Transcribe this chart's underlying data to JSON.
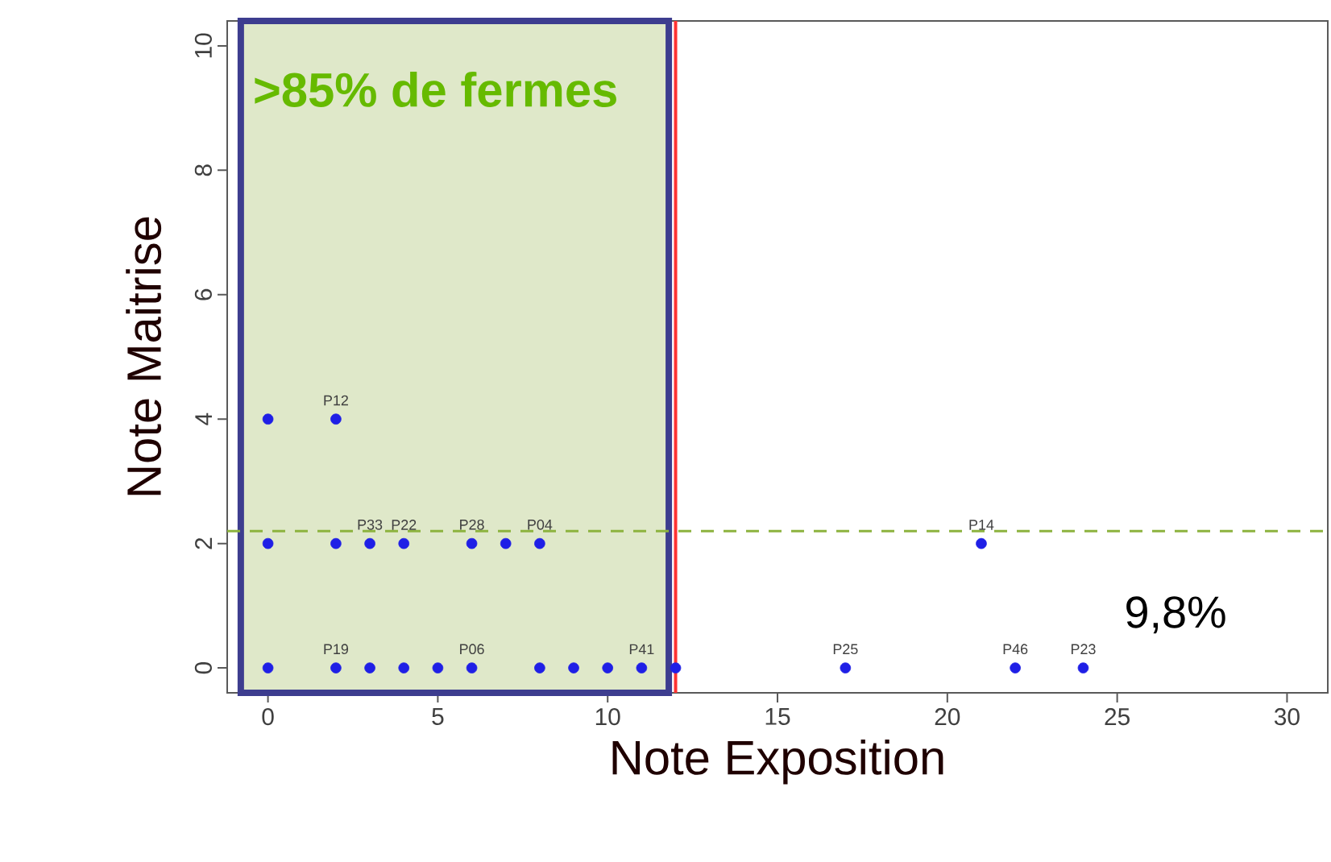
{
  "chart_data": {
    "type": "scatter",
    "xlabel": "Note Exposition",
    "ylabel": "Note Maitrise",
    "x": [
      0,
      2,
      0,
      2,
      3,
      4,
      6,
      7,
      8,
      21,
      0,
      2,
      3,
      4,
      5,
      6,
      8,
      9,
      10,
      11,
      12,
      17,
      22,
      24
    ],
    "values": [
      4,
      4,
      2,
      2,
      2,
      2,
      2,
      2,
      2,
      2,
      0,
      0,
      0,
      0,
      0,
      0,
      0,
      0,
      0,
      0,
      0,
      0,
      0,
      0
    ],
    "color": "#1f1fe6",
    "marker": "circle",
    "xlim": [
      -1.2,
      31.2
    ],
    "ylim": [
      -0.4,
      10.4
    ],
    "xticks": [
      0,
      5,
      10,
      15,
      20,
      25,
      30
    ],
    "yticks": [
      0,
      2,
      4,
      6,
      8,
      10
    ],
    "grid": false,
    "ref_lines": [
      {
        "axis": "x",
        "value": 12,
        "color": "#ff3333",
        "line_style": "solid"
      },
      {
        "axis": "y",
        "value": 2.2,
        "color": "#8db33f",
        "line_style": "dashed"
      }
    ],
    "bands": [
      {
        "axis": "x",
        "from": -0.8,
        "to": 11.8,
        "label": ">85% de fermes",
        "color": "#dfe8c9"
      }
    ],
    "annotations": [
      {
        "text": "P12",
        "x": 2,
        "y": 4
      },
      {
        "text": "P33",
        "x": 3,
        "y": 2
      },
      {
        "text": "P22",
        "x": 4,
        "y": 2
      },
      {
        "text": "P28",
        "x": 6,
        "y": 2
      },
      {
        "text": "P04",
        "x": 8,
        "y": 2
      },
      {
        "text": "P14",
        "x": 21,
        "y": 2
      },
      {
        "text": "P19",
        "x": 2,
        "y": 0
      },
      {
        "text": "P06",
        "x": 6,
        "y": 0
      },
      {
        "text": "P41",
        "x": 11,
        "y": 0
      },
      {
        "text": "P25",
        "x": 17,
        "y": 0
      },
      {
        "text": "P46",
        "x": 22,
        "y": 0
      },
      {
        "text": "P23",
        "x": 24,
        "y": 0
      },
      "9,8%"
    ]
  }
}
